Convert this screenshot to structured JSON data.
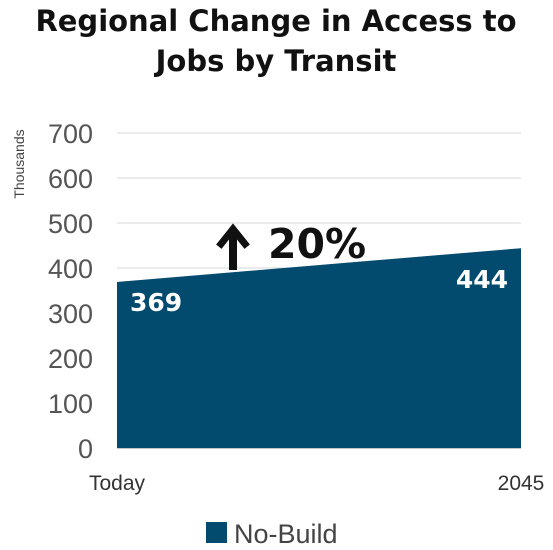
{
  "chart_data": {
    "type": "area",
    "title_lines": [
      "Regional Change in Access to",
      "Jobs by Transit"
    ],
    "ylabel": "Thousands",
    "xlabel": "",
    "categories": [
      "Today",
      "2045"
    ],
    "ylim": [
      0,
      700
    ],
    "yticks": [
      "0",
      "100",
      "200",
      "300",
      "400",
      "500",
      "600",
      "700"
    ],
    "grid": true,
    "legend_position": "bottom",
    "series": [
      {
        "name": "No-Build",
        "values": [
          369,
          444
        ],
        "data_labels": [
          "369",
          "444"
        ],
        "color": "#034b6e"
      }
    ],
    "annotation": {
      "text": "20%",
      "icon": "up-arrow-icon"
    }
  }
}
